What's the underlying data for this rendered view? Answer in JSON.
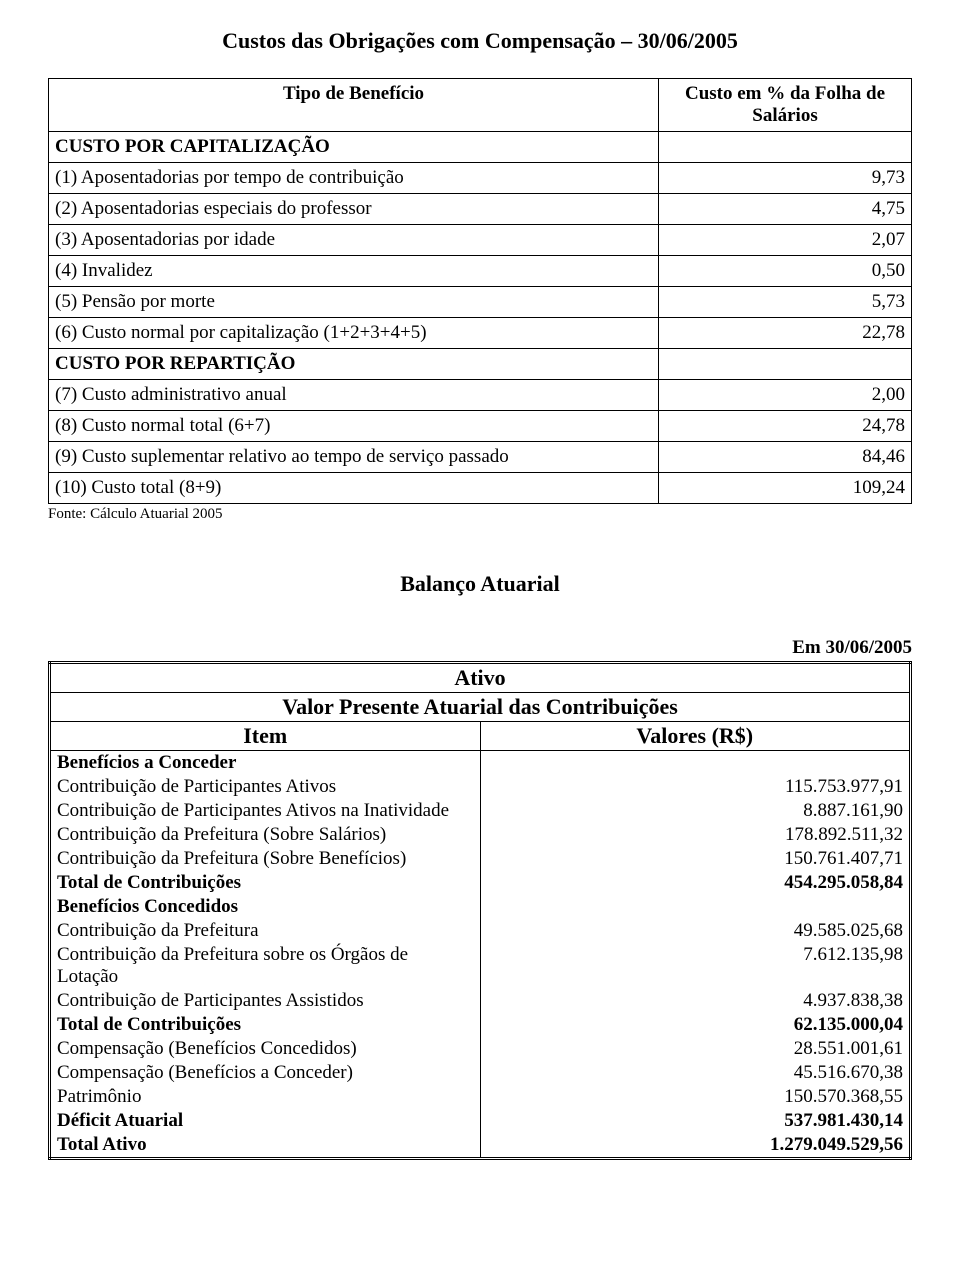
{
  "title1": "Custos das Obrigações com Compensação – 30/06/2005",
  "table1": {
    "header_left": "Tipo de Benefício",
    "header_right": "Custo em % da Folha de Salários",
    "section1": "CUSTO POR CAPITALIZAÇÃO",
    "r1_label": "(1) Aposentadorias por tempo de contribuição",
    "r1_val": "9,73",
    "r2_label": "(2) Aposentadorias especiais do professor",
    "r2_val": "4,75",
    "r3_label": "(3) Aposentadorias por idade",
    "r3_val": "2,07",
    "r4_label": "(4) Invalidez",
    "r4_val": "0,50",
    "r5_label": "(5) Pensão por morte",
    "r5_val": "5,73",
    "r6_label": "(6) Custo normal por capitalização (1+2+3+4+5)",
    "r6_val": "22,78",
    "section2": "CUSTO POR REPARTIÇÃO",
    "r7_label": "(7) Custo administrativo anual",
    "r7_val": "2,00",
    "r8_label": "(8) Custo normal total (6+7)",
    "r8_val": "24,78",
    "r9_label": "(9) Custo suplementar relativo ao tempo de serviço passado",
    "r9_val": "84,46",
    "r10_label": "(10) Custo total (8+9)",
    "r10_val": "109,24"
  },
  "source_note": "Fonte: Cálculo Atuarial 2005",
  "title2": "Balanço Atuarial",
  "date_label": "Em 30/06/2005",
  "table2": {
    "hdr_ativo": "Ativo",
    "hdr_valor": "Valor Presente Atuarial das Contribuições",
    "col_item": "Item",
    "col_valores": "Valores (R$)",
    "sec_conceder": "Benefícios a Conceder",
    "a1_label": "Contribuição de Participantes Ativos",
    "a1_val": "115.753.977,91",
    "a2_label": "Contribuição de Participantes Ativos na Inatividade",
    "a2_val": "8.887.161,90",
    "a3_label": "Contribuição da Prefeitura (Sobre Salários)",
    "a3_val": "178.892.511,32",
    "a4_label": "Contribuição da Prefeitura (Sobre Benefícios)",
    "a4_val": "150.761.407,71",
    "a_total_label": "Total de Contribuições",
    "a_total_val": "454.295.058,84",
    "sec_concedidos": "Benefícios Concedidos",
    "b1_label": "Contribuição da Prefeitura",
    "b1_val": "49.585.025,68",
    "b2_label": "Contribuição da Prefeitura sobre os Órgãos de Lotação",
    "b2_val": "7.612.135,98",
    "b3_label": "Contribuição de Participantes Assistidos",
    "b3_val": "4.937.838,38",
    "b_total_label": "Total de Contribuições",
    "b_total_val": "62.135.000,04",
    "c1_label": "Compensação (Benefícios Concedidos)",
    "c1_val": "28.551.001,61",
    "c2_label": "Compensação (Benefícios a Conceder)",
    "c2_val": "45.516.670,38",
    "c3_label": "Patrimônio",
    "c3_val": "150.570.368,55",
    "deficit_label": "Déficit Atuarial",
    "deficit_val": "537.981.430,14",
    "total_ativo_label": "Total Ativo",
    "total_ativo_val": "1.279.049.529,56"
  }
}
